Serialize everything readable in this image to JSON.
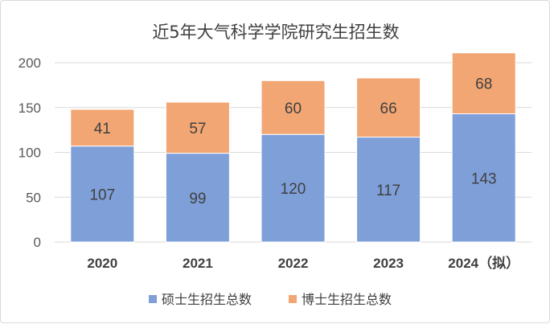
{
  "chart_data": {
    "type": "bar",
    "stacked": true,
    "title": "近5年大气科学学院研究生招生数",
    "categories": [
      "2020",
      "2021",
      "2022",
      "2023",
      "2024（拟）"
    ],
    "series": [
      {
        "name": "硕士生招生总数",
        "values": [
          107,
          99,
          120,
          117,
          143
        ],
        "color": "#7f9fd9"
      },
      {
        "name": "博士生招生总数",
        "values": [
          41,
          57,
          60,
          66,
          68
        ],
        "color": "#f2a673"
      }
    ],
    "ylim": [
      0,
      200
    ],
    "yticks": [
      0,
      50,
      100,
      150,
      200
    ],
    "grid": true,
    "legend": "bottom",
    "xlabel": "",
    "ylabel": ""
  }
}
